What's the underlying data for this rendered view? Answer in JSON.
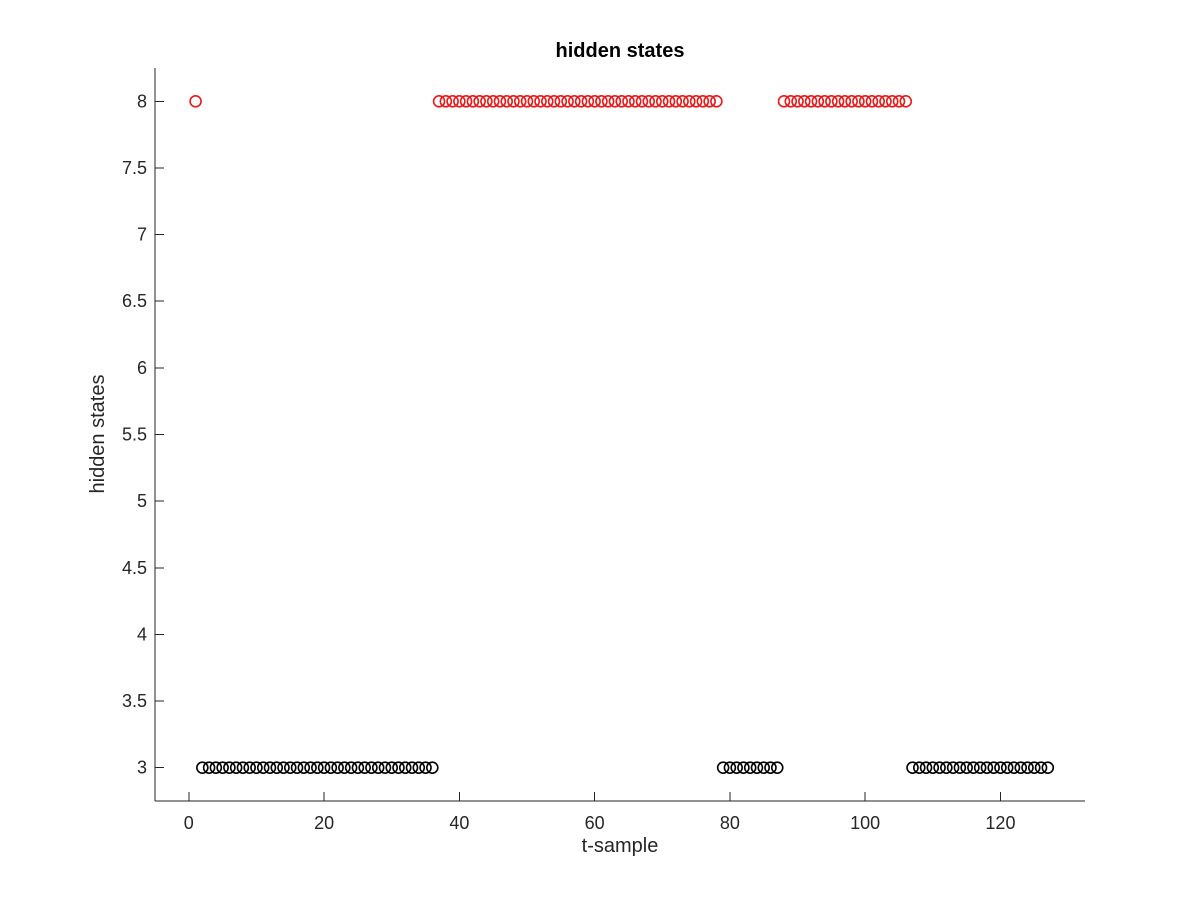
{
  "chart_data": {
    "type": "scatter",
    "title": "hidden states",
    "xlabel": "t-sample",
    "ylabel": "hidden states",
    "xlim": [
      -5,
      132.5
    ],
    "ylim": [
      2.75,
      8.25
    ],
    "xticks": [
      0,
      20,
      40,
      60,
      80,
      100,
      120
    ],
    "yticks": [
      3,
      3.5,
      4,
      4.5,
      5,
      5.5,
      6,
      6.5,
      7,
      7.5,
      8
    ],
    "grid": false,
    "marker": "open-circle",
    "point_rule": "Each sample t from 1 to 127 is plotted; red circles at y=8 on listed ranges, black circles at y=3 otherwise.",
    "series": [
      {
        "color": "#e81a1a",
        "y": 8,
        "ranges": [
          [
            1,
            1
          ],
          [
            37,
            78
          ],
          [
            88,
            106
          ]
        ]
      },
      {
        "color": "#000000",
        "y": 3,
        "ranges": [
          [
            2,
            36
          ],
          [
            79,
            87
          ],
          [
            107,
            127
          ]
        ]
      }
    ]
  }
}
